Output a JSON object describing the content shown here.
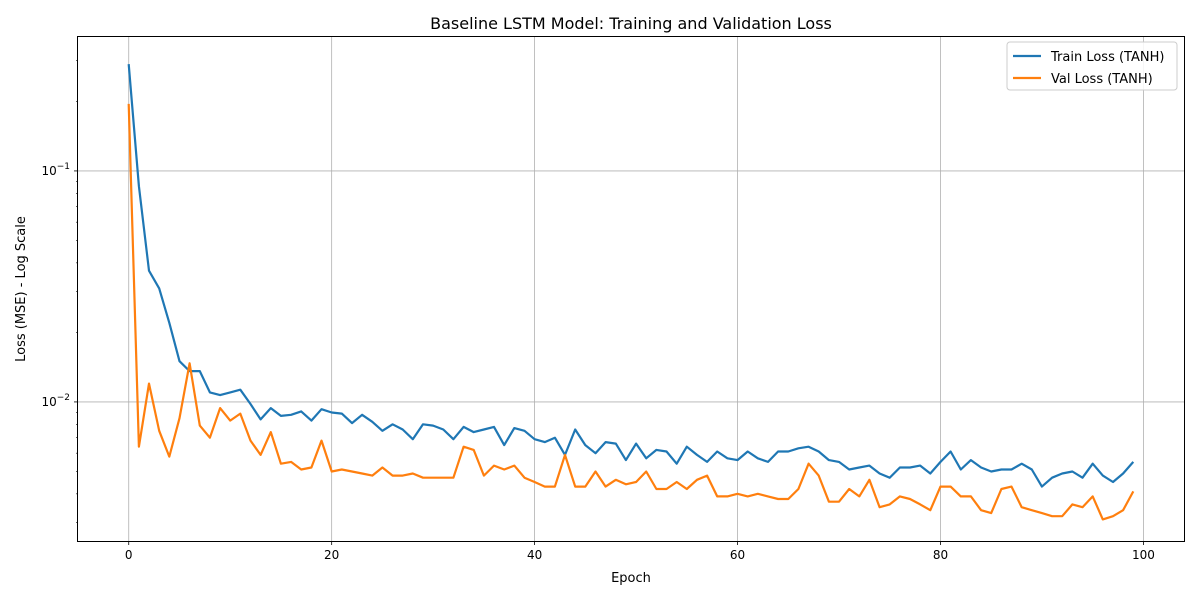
{
  "chart_data": {
    "type": "line",
    "title": "Baseline LSTM Model: Training and Validation Loss",
    "xlabel": "Epoch",
    "ylabel": "Loss (MSE) - Log Scale",
    "yscale": "log",
    "xlim": [
      -5,
      104
    ],
    "ylim": [
      0.0025,
      0.38
    ],
    "xticks": [
      0,
      20,
      40,
      60,
      80,
      100
    ],
    "xtick_labels": [
      "0",
      "20",
      "40",
      "60",
      "80",
      "100"
    ],
    "yticks": [
      0.01,
      0.1
    ],
    "ytick_labels": [
      "10^-2",
      "10^-1"
    ],
    "grid": true,
    "legend_position": "upper right",
    "series": [
      {
        "name": "Train Loss (TANH)",
        "color": "#1f77b4",
        "x": [
          0,
          1,
          2,
          3,
          4,
          5,
          6,
          7,
          8,
          9,
          10,
          11,
          12,
          13,
          14,
          15,
          16,
          17,
          18,
          19,
          20,
          21,
          22,
          23,
          24,
          25,
          26,
          27,
          28,
          29,
          30,
          31,
          32,
          33,
          34,
          35,
          36,
          37,
          38,
          39,
          40,
          41,
          42,
          43,
          44,
          45,
          46,
          47,
          48,
          49,
          50,
          51,
          52,
          53,
          54,
          55,
          56,
          57,
          58,
          59,
          60,
          61,
          62,
          63,
          64,
          65,
          66,
          67,
          68,
          69,
          70,
          71,
          72,
          73,
          74,
          75,
          76,
          77,
          78,
          79,
          80,
          81,
          82,
          83,
          84,
          85,
          86,
          87,
          88,
          89,
          90,
          91,
          92,
          93,
          94,
          95,
          96,
          97,
          98,
          99
        ],
        "values": [
          0.29,
          0.086,
          0.037,
          0.031,
          0.022,
          0.015,
          0.0136,
          0.0136,
          0.011,
          0.0107,
          0.011,
          0.0113,
          0.0098,
          0.0084,
          0.0094,
          0.0087,
          0.0088,
          0.0091,
          0.0083,
          0.0093,
          0.009,
          0.0089,
          0.0081,
          0.0088,
          0.0082,
          0.0075,
          0.008,
          0.0076,
          0.0069,
          0.008,
          0.0079,
          0.0076,
          0.0069,
          0.0078,
          0.0074,
          0.0076,
          0.0078,
          0.0065,
          0.0077,
          0.0075,
          0.0069,
          0.0067,
          0.007,
          0.0059,
          0.0076,
          0.0065,
          0.006,
          0.0067,
          0.0066,
          0.0056,
          0.0066,
          0.0057,
          0.0062,
          0.0061,
          0.0054,
          0.0064,
          0.0059,
          0.0055,
          0.0061,
          0.0057,
          0.0056,
          0.0061,
          0.0057,
          0.0055,
          0.0061,
          0.0061,
          0.0063,
          0.0064,
          0.0061,
          0.0056,
          0.0055,
          0.0051,
          0.0052,
          0.0053,
          0.0049,
          0.0047,
          0.0052,
          0.0052,
          0.0053,
          0.0049,
          0.0055,
          0.0061,
          0.0051,
          0.0056,
          0.0052,
          0.005,
          0.0051,
          0.0051,
          0.0054,
          0.0051,
          0.0043,
          0.0047,
          0.0049,
          0.005,
          0.0047,
          0.0054,
          0.0048,
          0.0045,
          0.0049,
          0.0055
        ]
      },
      {
        "name": "Val Loss (TANH)",
        "color": "#ff7f0e",
        "x": [
          0,
          1,
          2,
          3,
          4,
          5,
          6,
          7,
          8,
          9,
          10,
          11,
          12,
          13,
          14,
          15,
          16,
          17,
          18,
          19,
          20,
          21,
          22,
          23,
          24,
          25,
          26,
          27,
          28,
          29,
          30,
          31,
          32,
          33,
          34,
          35,
          36,
          37,
          38,
          39,
          40,
          41,
          42,
          43,
          44,
          45,
          46,
          47,
          48,
          49,
          50,
          51,
          52,
          53,
          54,
          55,
          56,
          57,
          58,
          59,
          60,
          61,
          62,
          63,
          64,
          65,
          66,
          67,
          68,
          69,
          70,
          71,
          72,
          73,
          74,
          75,
          76,
          77,
          78,
          79,
          80,
          81,
          82,
          83,
          84,
          85,
          86,
          87,
          88,
          89,
          90,
          91,
          92,
          93,
          94,
          95,
          96,
          97,
          98,
          99
        ],
        "values": [
          0.195,
          0.0064,
          0.012,
          0.0075,
          0.0058,
          0.0085,
          0.0147,
          0.0079,
          0.007,
          0.0094,
          0.0083,
          0.0089,
          0.0068,
          0.0059,
          0.0074,
          0.0054,
          0.0055,
          0.0051,
          0.0052,
          0.0068,
          0.005,
          0.0051,
          0.005,
          0.0049,
          0.0048,
          0.0052,
          0.0048,
          0.0048,
          0.0049,
          0.0047,
          0.0047,
          0.0047,
          0.0047,
          0.0064,
          0.0062,
          0.0048,
          0.0053,
          0.0051,
          0.0053,
          0.0047,
          0.0045,
          0.0043,
          0.0043,
          0.0059,
          0.0043,
          0.0043,
          0.005,
          0.0043,
          0.0046,
          0.0044,
          0.0045,
          0.005,
          0.0042,
          0.0042,
          0.0045,
          0.0042,
          0.0046,
          0.0048,
          0.0039,
          0.0039,
          0.004,
          0.0039,
          0.004,
          0.0039,
          0.0038,
          0.0038,
          0.0042,
          0.0054,
          0.0048,
          0.0037,
          0.0037,
          0.0042,
          0.0039,
          0.0046,
          0.0035,
          0.0036,
          0.0039,
          0.0038,
          0.0036,
          0.0034,
          0.0043,
          0.0043,
          0.0039,
          0.0039,
          0.0034,
          0.0033,
          0.0042,
          0.0043,
          0.0035,
          0.0034,
          0.0033,
          0.0032,
          0.0032,
          0.0036,
          0.0035,
          0.0039,
          0.0031,
          0.0032,
          0.0034,
          0.0041
        ]
      }
    ]
  }
}
